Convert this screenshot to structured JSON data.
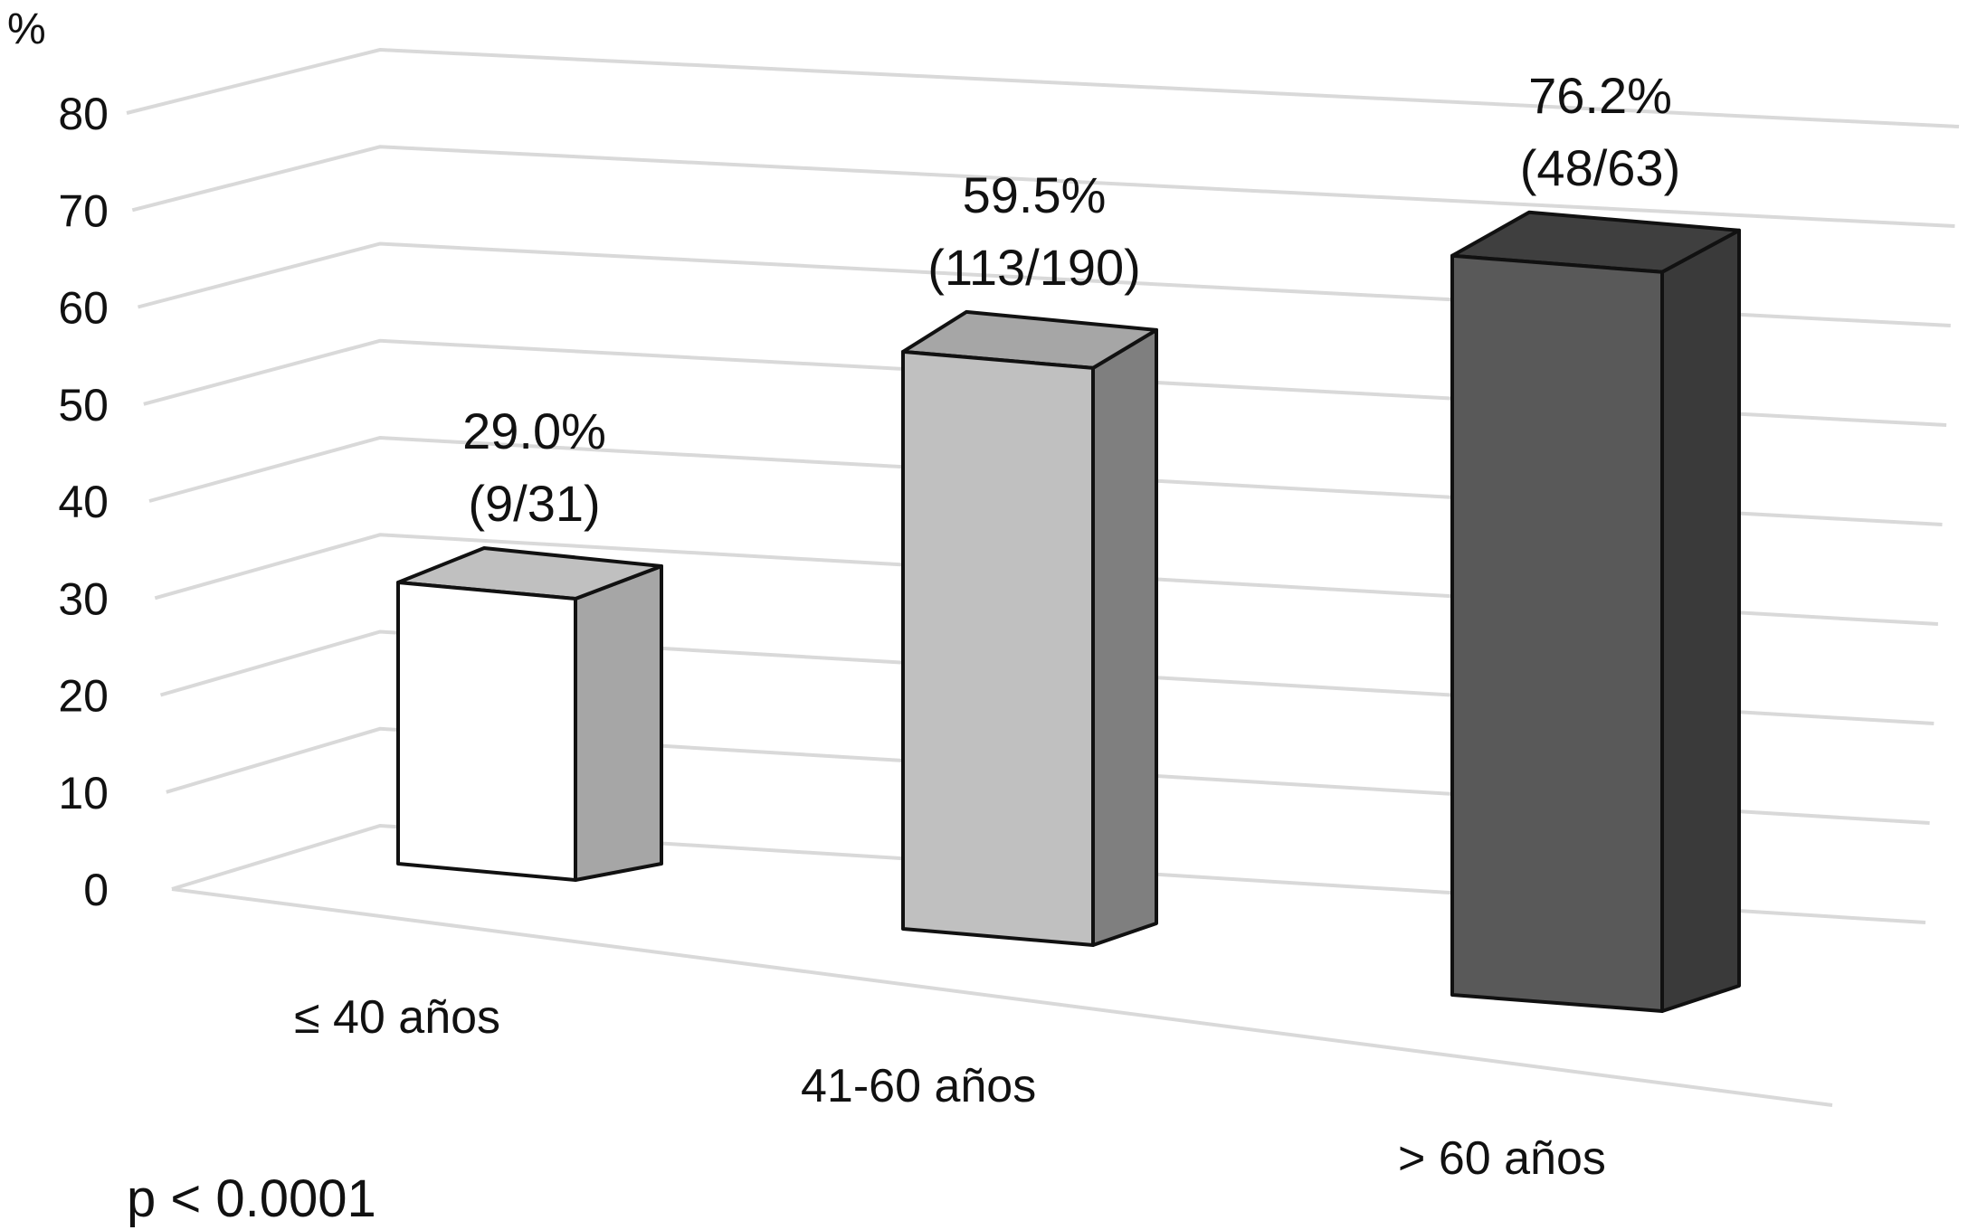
{
  "chart_data": {
    "type": "bar",
    "title": "",
    "xlabel": "",
    "ylabel": "%",
    "ylim": [
      0,
      80
    ],
    "yticks": [
      0,
      10,
      20,
      30,
      40,
      50,
      60,
      70,
      80
    ],
    "grid": true,
    "style": "3d",
    "categories": [
      "≤ 40 años",
      "41-60 años",
      "> 60 años"
    ],
    "values": [
      29.0,
      59.5,
      76.2
    ],
    "value_labels": [
      "29.0%",
      "59.5%",
      "76.2%"
    ],
    "count_labels": [
      "(9/31)",
      "(113/190)",
      "(48/63)"
    ],
    "annotation": "p < 0.0001",
    "colors": {
      "front": [
        "#ffffff",
        "#c0c0c0",
        "#595959"
      ],
      "side": [
        "#a6a6a6",
        "#7f7f7f",
        "#3a3a3a"
      ],
      "top": [
        "#c0c0c0",
        "#a6a6a6",
        "#3f3f3f"
      ],
      "grid": "#d9d9d9",
      "outline": "#111111"
    }
  }
}
